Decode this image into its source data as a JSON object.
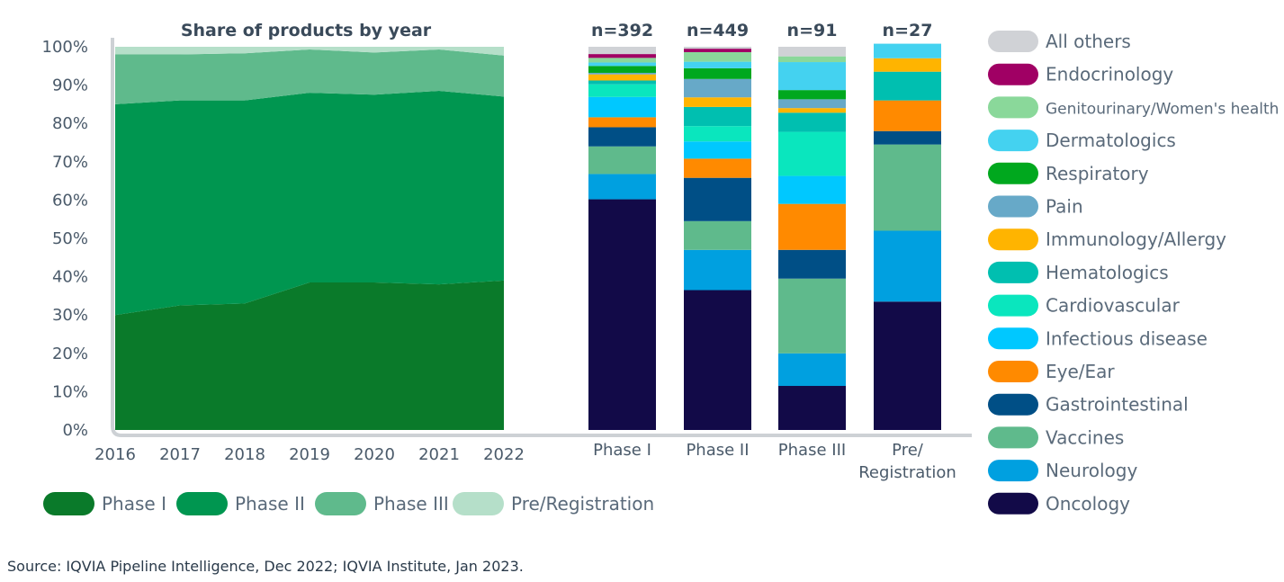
{
  "chart_data": [
    {
      "type": "area",
      "stacked": true,
      "title": "Share of products by year",
      "x": [
        "2016",
        "2017",
        "2018",
        "2019",
        "2020",
        "2021",
        "2022"
      ],
      "ylim": [
        0,
        100
      ],
      "yticks": [
        "0%",
        "10%",
        "20%",
        "30%",
        "40%",
        "50%",
        "60%",
        "70%",
        "80%",
        "90%",
        "100%"
      ],
      "series": [
        {
          "name": "Phase I",
          "color": "#0a7a2a",
          "values": [
            30,
            32.5,
            33,
            38.5,
            38.5,
            38,
            39
          ]
        },
        {
          "name": "Phase II",
          "color": "#009650",
          "values": [
            55,
            53.5,
            53,
            49.5,
            49,
            50.5,
            48
          ]
        },
        {
          "name": "Phase III",
          "color": "#5fba8c",
          "values": [
            13,
            12,
            12.3,
            11.3,
            11,
            10.8,
            10.7
          ]
        },
        {
          "name": "Pre/Registration",
          "color": "#b5dfc9",
          "values": [
            2,
            2,
            1.7,
            0.7,
            1.5,
            0.7,
            2.3
          ]
        }
      ]
    },
    {
      "type": "bar",
      "stacked": true,
      "categories": [
        "Phase I",
        "Phase II",
        "Phase III",
        "Pre/\nRegistration"
      ],
      "annotations": [
        "n=392",
        "n=449",
        "n=91",
        "n=27"
      ],
      "ylim": [
        0,
        100
      ],
      "series": [
        {
          "name": "Oncology",
          "color": "#120a48",
          "values": [
            60.2,
            36.5,
            11.5,
            33.5
          ]
        },
        {
          "name": "Neurology",
          "color": "#00a0e0",
          "values": [
            6.6,
            10.5,
            8.5,
            18.5
          ]
        },
        {
          "name": "Vaccines",
          "color": "#5fba8c",
          "values": [
            7.2,
            7.5,
            19.5,
            22.5
          ]
        },
        {
          "name": "Gastrointestinal",
          "color": "#004f86",
          "values": [
            5,
            11.3,
            7.5,
            3.5
          ]
        },
        {
          "name": "Eye/Ear",
          "color": "#ff8a00",
          "values": [
            2.6,
            5,
            12,
            8
          ]
        },
        {
          "name": "Infectious disease",
          "color": "#00c8ff",
          "values": [
            5.3,
            4.5,
            7.3,
            0
          ]
        },
        {
          "name": "Cardiovascular",
          "color": "#0ae6be",
          "values": [
            3.3,
            4,
            11.5,
            0
          ]
        },
        {
          "name": "Hematologics",
          "color": "#00bfb0",
          "values": [
            1,
            5,
            5,
            7.5
          ]
        },
        {
          "name": "Immunology/Allergy",
          "color": "#ffb400",
          "values": [
            1.6,
            2.5,
            1.2,
            3.5
          ]
        },
        {
          "name": "Pain",
          "color": "#67a9c8",
          "values": [
            0.4,
            4.8,
            2.3,
            0
          ]
        },
        {
          "name": "Respiratory",
          "color": "#00a81e",
          "values": [
            1.8,
            2.8,
            2.4,
            0
          ]
        },
        {
          "name": "Dermatologics",
          "color": "#44d2f0",
          "values": [
            0.9,
            1.7,
            7.3,
            3.8
          ]
        },
        {
          "name": "Genitourinary/Women's health",
          "color": "#8ad89a",
          "values": [
            1.2,
            2.5,
            1.5,
            0
          ]
        },
        {
          "name": "Endocrinology",
          "color": "#a00064",
          "values": [
            1,
            0.9,
            0,
            0
          ]
        },
        {
          "name": "All others",
          "color": "#d0d2d6",
          "values": [
            1.9,
            0.5,
            2.5,
            0
          ]
        }
      ]
    }
  ],
  "legend_phases": [
    {
      "label": "Phase I",
      "color": "#0a7a2a"
    },
    {
      "label": "Phase II",
      "color": "#009650"
    },
    {
      "label": "Phase III",
      "color": "#5fba8c"
    },
    {
      "label": "Pre/Registration",
      "color": "#b5dfc9"
    }
  ],
  "source": "Source: IQVIA Pipeline Intelligence, Dec 2022; IQVIA Institute, Jan 2023."
}
